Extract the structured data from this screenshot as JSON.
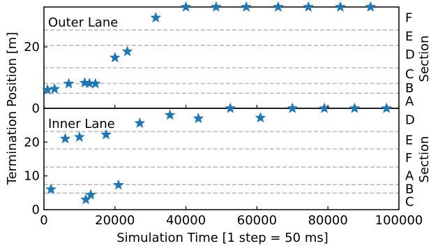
{
  "chart_data": {
    "type": "scatter",
    "xlabel": "Simulation Time [1 step = 50 ms]",
    "ylabel": "Termination Position [m]",
    "right_label": "Section",
    "xlim": [
      0,
      100000
    ],
    "x_ticks": [
      0,
      20000,
      40000,
      60000,
      80000,
      100000
    ],
    "x_tick_labels": [
      "0",
      "20000",
      "40000",
      "60000",
      "80000",
      "100000"
    ],
    "marker": "star",
    "marker_color": "#1f77b4",
    "gridline_color": "#bbbbbb",
    "panels": [
      {
        "title": "Outer Lane",
        "ylim": [
          0,
          33
        ],
        "y_ticks": [
          0,
          20
        ],
        "y_tick_labels": [
          "0",
          "20"
        ],
        "gridlines_y": [
          4.9,
          8.1,
          13.2,
          20.5,
          25.5
        ],
        "section_labels": [
          {
            "label": "A",
            "y": 2.3
          },
          {
            "label": "B",
            "y": 6.6
          },
          {
            "label": "C",
            "y": 11.2
          },
          {
            "label": "D",
            "y": 17.5
          },
          {
            "label": "E",
            "y": 23.4
          },
          {
            "label": "F",
            "y": 29.5
          }
        ],
        "points": [
          {
            "x": 1000,
            "y": 6.0
          },
          {
            "x": 3000,
            "y": 6.3
          },
          {
            "x": 7000,
            "y": 8.0
          },
          {
            "x": 11500,
            "y": 8.3
          },
          {
            "x": 12800,
            "y": 8.1
          },
          {
            "x": 14500,
            "y": 8.0
          },
          {
            "x": 20000,
            "y": 16.5
          },
          {
            "x": 23500,
            "y": 18.5
          },
          {
            "x": 31500,
            "y": 29.5
          },
          {
            "x": 40000,
            "y": 33.0
          },
          {
            "x": 48500,
            "y": 33.0
          },
          {
            "x": 57000,
            "y": 33.0
          },
          {
            "x": 66000,
            "y": 33.0
          },
          {
            "x": 74500,
            "y": 33.0
          },
          {
            "x": 83500,
            "y": 33.0
          },
          {
            "x": 92000,
            "y": 33.0
          }
        ]
      },
      {
        "title": "Inner Lane",
        "ylim": [
          0,
          30
        ],
        "y_ticks": [
          0,
          10,
          20
        ],
        "y_tick_labels": [
          "0",
          "10",
          "20"
        ],
        "gridlines_y": [
          4.9,
          7.4,
          12.6,
          18.0,
          23.1
        ],
        "section_labels": [
          {
            "label": "C",
            "y": 2.4
          },
          {
            "label": "B",
            "y": 6.1
          },
          {
            "label": "A",
            "y": 10.0
          },
          {
            "label": "F",
            "y": 15.3
          },
          {
            "label": "E",
            "y": 20.6
          },
          {
            "label": "D",
            "y": 26.6
          }
        ],
        "points": [
          {
            "x": 2000,
            "y": 6.0
          },
          {
            "x": 6000,
            "y": 21.0
          },
          {
            "x": 10000,
            "y": 21.5
          },
          {
            "x": 11800,
            "y": 3.0
          },
          {
            "x": 13200,
            "y": 4.4
          },
          {
            "x": 17500,
            "y": 22.2
          },
          {
            "x": 21000,
            "y": 7.3
          },
          {
            "x": 27000,
            "y": 25.6
          },
          {
            "x": 35500,
            "y": 28.0
          },
          {
            "x": 43500,
            "y": 27.0
          },
          {
            "x": 52500,
            "y": 30.0
          },
          {
            "x": 61000,
            "y": 27.2
          },
          {
            "x": 70000,
            "y": 30.0
          },
          {
            "x": 79000,
            "y": 30.0
          },
          {
            "x": 87500,
            "y": 30.0
          },
          {
            "x": 96500,
            "y": 30.0
          }
        ]
      }
    ]
  }
}
